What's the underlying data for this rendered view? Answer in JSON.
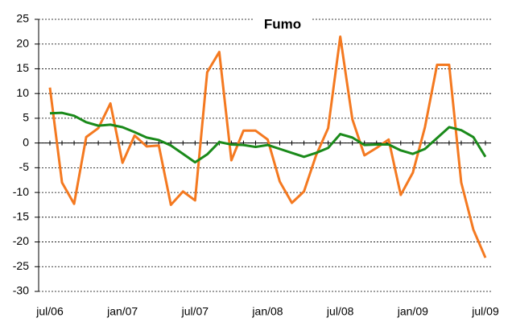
{
  "chart_data": {
    "type": "line",
    "title": "Fumo",
    "categories": [
      "jul/06",
      null,
      null,
      null,
      null,
      null,
      "jan/07",
      null,
      null,
      null,
      null,
      null,
      "jul/07",
      null,
      null,
      null,
      null,
      null,
      "jan/08",
      null,
      null,
      null,
      null,
      null,
      "jul/08",
      null,
      null,
      null,
      null,
      null,
      "jan/09",
      null,
      null,
      null,
      null,
      null,
      "jul/09"
    ],
    "series": [
      {
        "color": "#f47920",
        "values": [
          11.2,
          -8,
          -12.3,
          1.2,
          3,
          8,
          -4,
          1.5,
          -0.7,
          -0.5,
          -12.5,
          -9.8,
          -11.6,
          14.3,
          18.4,
          -3.5,
          2.5,
          2.5,
          0.7,
          -7.8,
          -12.1,
          -9.8,
          -2.5,
          3,
          21.5,
          4.8,
          -2.5,
          -1,
          0.7,
          -10.5,
          -6,
          3.2,
          15.8,
          15.8,
          -8,
          -17.5,
          -23.2
        ]
      },
      {
        "color": "#1a8a1a",
        "values": [
          6,
          6.1,
          5.5,
          4.2,
          3.5,
          3.7,
          3.2,
          2.2,
          1.1,
          0.6,
          -0.5,
          -2.2,
          -3.9,
          -2.3,
          0.2,
          -0.3,
          -0.4,
          -0.8,
          -0.4,
          -1.2,
          -2,
          -2.8,
          -2,
          -1,
          1.8,
          1.1,
          -0.4,
          -0.3,
          -0.3,
          -1.5,
          -2.2,
          -1.2,
          1,
          3.2,
          2.6,
          1.2,
          -2.8
        ]
      }
    ],
    "ylim": [
      -30,
      25
    ],
    "yticks": [
      -30,
      -25,
      -20,
      -15,
      -10,
      -5,
      0,
      5,
      10,
      15,
      20,
      25
    ],
    "grid": true
  }
}
